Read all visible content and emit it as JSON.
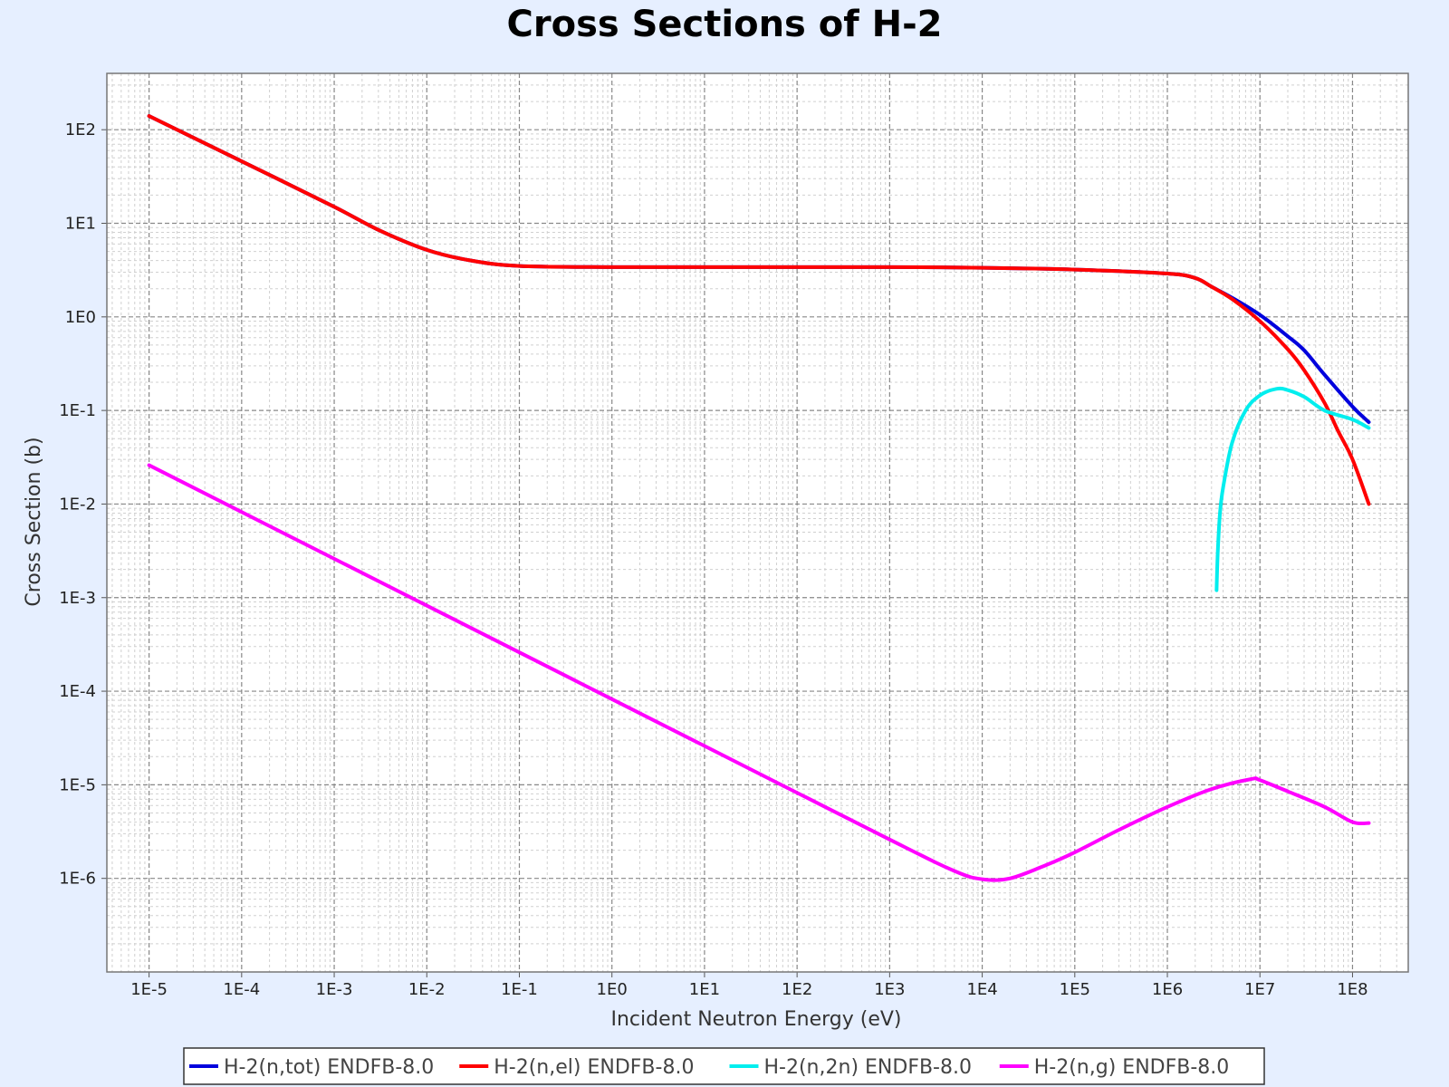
{
  "chart_data": {
    "type": "line",
    "title": "Cross Sections of H-2",
    "xlabel": "Incident Neutron Energy (eV)",
    "ylabel": "Cross Section (b)",
    "x_scale": "log",
    "y_scale": "log",
    "xlim": [
      3.5e-06,
      400000000.0
    ],
    "ylim": [
      1e-07,
      400.0
    ],
    "grid": true,
    "legend_position": "bottom",
    "x_ticks": [
      {
        "value": 1e-05,
        "label": "1E-5"
      },
      {
        "value": 0.0001,
        "label": "1E-4"
      },
      {
        "value": 0.001,
        "label": "1E-3"
      },
      {
        "value": 0.01,
        "label": "1E-2"
      },
      {
        "value": 0.1,
        "label": "1E-1"
      },
      {
        "value": 1.0,
        "label": "1E0"
      },
      {
        "value": 10.0,
        "label": "1E1"
      },
      {
        "value": 100.0,
        "label": "1E2"
      },
      {
        "value": 1000.0,
        "label": "1E3"
      },
      {
        "value": 10000.0,
        "label": "1E4"
      },
      {
        "value": 100000.0,
        "label": "1E5"
      },
      {
        "value": 1000000.0,
        "label": "1E6"
      },
      {
        "value": 10000000.0,
        "label": "1E7"
      },
      {
        "value": 100000000.0,
        "label": "1E8"
      }
    ],
    "y_ticks": [
      {
        "value": 1e-06,
        "label": "1E-6"
      },
      {
        "value": 1e-05,
        "label": "1E-5"
      },
      {
        "value": 0.0001,
        "label": "1E-4"
      },
      {
        "value": 0.001,
        "label": "1E-3"
      },
      {
        "value": 0.01,
        "label": "1E-2"
      },
      {
        "value": 0.1,
        "label": "1E-1"
      },
      {
        "value": 1.0,
        "label": "1E0"
      },
      {
        "value": 10.0,
        "label": "1E1"
      },
      {
        "value": 100.0,
        "label": "1E2"
      }
    ],
    "series": [
      {
        "name": "H-2(n,tot) ENDFB-8.0",
        "color": "#0000dd",
        "x": [
          1e-05,
          0.0001,
          0.001,
          0.003,
          0.01,
          0.03,
          0.1,
          1.0,
          10.0,
          100.0,
          1000.0,
          10000.0,
          100000.0,
          1000000.0,
          2000000.0,
          3000000.0,
          5000000.0,
          10000000.0,
          20000000.0,
          30000000.0,
          50000000.0,
          100000000.0,
          150000000.0
        ],
        "y": [
          140,
          46,
          15,
          8.5,
          5.2,
          4.0,
          3.5,
          3.4,
          3.4,
          3.4,
          3.4,
          3.35,
          3.2,
          2.9,
          2.6,
          2.1,
          1.6,
          1.05,
          0.62,
          0.44,
          0.24,
          0.11,
          0.075
        ]
      },
      {
        "name": "H-2(n,el) ENDFB-8.0",
        "color": "#ff0000",
        "x": [
          1e-05,
          0.0001,
          0.001,
          0.003,
          0.01,
          0.03,
          0.1,
          1.0,
          10.0,
          100.0,
          1000.0,
          10000.0,
          100000.0,
          1000000.0,
          2000000.0,
          3000000.0,
          5000000.0,
          10000000.0,
          20000000.0,
          30000000.0,
          50000000.0,
          70000000.0,
          100000000.0,
          150000000.0
        ],
        "y": [
          140,
          46,
          15,
          8.5,
          5.2,
          4.0,
          3.5,
          3.4,
          3.4,
          3.4,
          3.4,
          3.35,
          3.2,
          2.9,
          2.6,
          2.1,
          1.55,
          0.9,
          0.45,
          0.27,
          0.12,
          0.06,
          0.03,
          0.01
        ]
      },
      {
        "name": "H-2(n,2n) ENDFB-8.0",
        "color": "#00eeee",
        "x": [
          3400000.0,
          3500000.0,
          3700000.0,
          4000000.0,
          5000000.0,
          7000000.0,
          10000000.0,
          15000000.0,
          20000000.0,
          30000000.0,
          50000000.0,
          100000000.0,
          150000000.0
        ],
        "y": [
          0.0012,
          0.003,
          0.008,
          0.015,
          0.045,
          0.1,
          0.145,
          0.17,
          0.165,
          0.14,
          0.1,
          0.08,
          0.065
        ]
      },
      {
        "name": "H-2(n,g) ENDFB-8.0",
        "color": "#ff00ff",
        "x": [
          1e-05,
          0.001,
          0.1,
          10.0,
          1000.0,
          5000.0,
          10000.0,
          20000.0,
          50000.0,
          100000.0,
          300000.0,
          1000000.0,
          3000000.0,
          8000000.0,
          10000000.0,
          20000000.0,
          50000000.0,
          100000000.0,
          150000000.0
        ],
        "y": [
          0.026,
          0.0026,
          0.00026,
          2.6e-05,
          2.6e-06,
          1.2e-06,
          9.8e-07,
          1e-06,
          1.4e-06,
          1.9e-06,
          3.3e-06,
          5.8e-06,
          9e-06,
          1.15e-05,
          1.12e-05,
          8.5e-06,
          5.8e-06,
          4e-06,
          3.9e-06
        ]
      }
    ]
  }
}
